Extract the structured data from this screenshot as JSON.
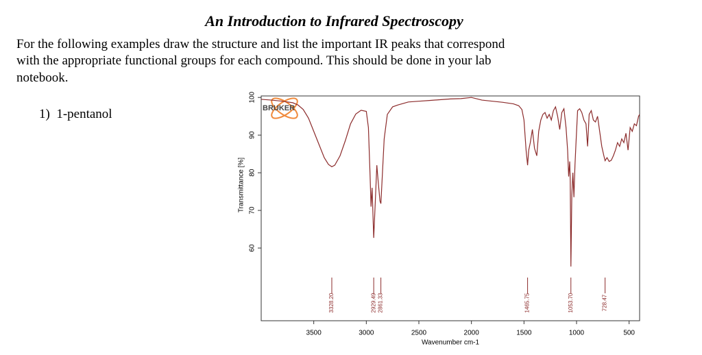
{
  "header": {
    "title": "An Introduction to Infrared Spectroscopy"
  },
  "body": {
    "lines": [
      "For the following examples draw the structure and list the important IR peaks that correspond",
      "with the appropriate functional groups for each compound. This should be done in your lab",
      "notebook."
    ]
  },
  "item": {
    "number": "1)",
    "label": "1-pentanol"
  },
  "chart_data": {
    "type": "line",
    "logo": "BRUKER",
    "x_label": "Wavenumber cm-1",
    "y_label": "Transmittance [%]",
    "color": "#8b2a2a",
    "xlim": [
      4000,
      400
    ],
    "ylim": [
      40.7,
      100.4
    ],
    "xticks": [
      3500,
      3000,
      2500,
      2000,
      1500,
      1000,
      500
    ],
    "yticks": [
      60,
      70,
      80,
      90,
      100
    ],
    "peaks": [
      {
        "value": 3328.2,
        "label": "3328.20"
      },
      2929.49,
      2861.33,
      1465.75,
      {
        "value": 1053.7,
        "label": "1053.70"
      },
      728.47
    ],
    "x": [
      4000,
      3900,
      3800,
      3700,
      3650,
      3600,
      3550,
      3500,
      3450,
      3400,
      3360,
      3328.2,
      3300,
      3250,
      3200,
      3150,
      3100,
      3050,
      3000,
      2980,
      2965,
      2955,
      2945,
      2929.49,
      2915,
      2900,
      2885,
      2870,
      2861.33,
      2850,
      2830,
      2800,
      2750,
      2700,
      2600,
      2500,
      2400,
      2300,
      2200,
      2100,
      2000,
      1900,
      1800,
      1700,
      1600,
      1550,
      1520,
      1500,
      1480,
      1465.75,
      1455,
      1440,
      1420,
      1400,
      1378,
      1360,
      1340,
      1320,
      1300,
      1280,
      1260,
      1240,
      1220,
      1200,
      1180,
      1160,
      1140,
      1120,
      1100,
      1085,
      1075,
      1065,
      1060,
      1053.7,
      1045,
      1035,
      1025,
      1015,
      1005,
      990,
      970,
      950,
      930,
      910,
      895,
      880,
      860,
      840,
      820,
      800,
      780,
      760,
      740,
      728.47,
      710,
      690,
      670,
      650,
      630,
      610,
      590,
      570,
      550,
      530,
      510,
      490,
      470,
      450,
      430,
      410,
      400
    ],
    "values": [
      99.5,
      99.3,
      99,
      98.6,
      98,
      96.8,
      94.5,
      91,
      87.5,
      84,
      82.2,
      81.6,
      82,
      84.5,
      88.5,
      93,
      95.6,
      96.6,
      96.3,
      92,
      80,
      71,
      76,
      62.7,
      72,
      82,
      77,
      72.5,
      71.8,
      78,
      89,
      95.5,
      97.5,
      98,
      98.8,
      99,
      99.2,
      99.4,
      99.6,
      99.7,
      100,
      99.3,
      99,
      98.7,
      98.3,
      97.8,
      96.8,
      94,
      86,
      82,
      86,
      88,
      91.5,
      86.5,
      84.5,
      91,
      94,
      95.5,
      96,
      94.5,
      95.5,
      94,
      96.5,
      97.5,
      95,
      91.5,
      96,
      97,
      92,
      86,
      79,
      83,
      78,
      55.1,
      74,
      80,
      73.5,
      82,
      88,
      96.5,
      97,
      96,
      94,
      93,
      87,
      95.5,
      96.5,
      94,
      93.5,
      95,
      91,
      87,
      84.5,
      83.2,
      84,
      83,
      83.3,
      84.5,
      86,
      88,
      87,
      89,
      88,
      90.5,
      86,
      92,
      91,
      93,
      92.5,
      95,
      95.5
    ]
  }
}
